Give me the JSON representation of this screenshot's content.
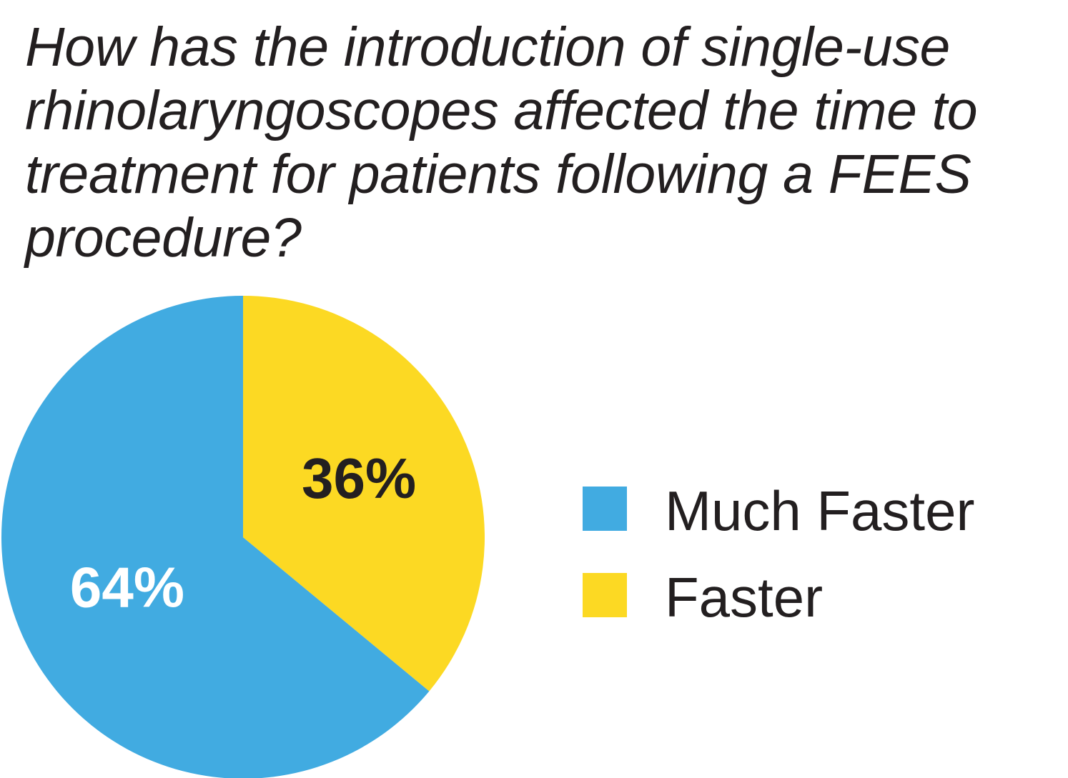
{
  "chart_data": {
    "type": "pie",
    "title": "How has the introduction of single-use rhinolaryngoscopes affected the time to treatment for patients following a FEES procedure?",
    "categories": [
      "Much Faster",
      "Faster"
    ],
    "values": [
      64,
      36
    ],
    "value_labels": [
      "64%",
      "36%"
    ],
    "colors": [
      "#41abe1",
      "#fcd923"
    ],
    "label_colors": [
      "#ffffff",
      "#231f20"
    ],
    "legend": "right"
  }
}
